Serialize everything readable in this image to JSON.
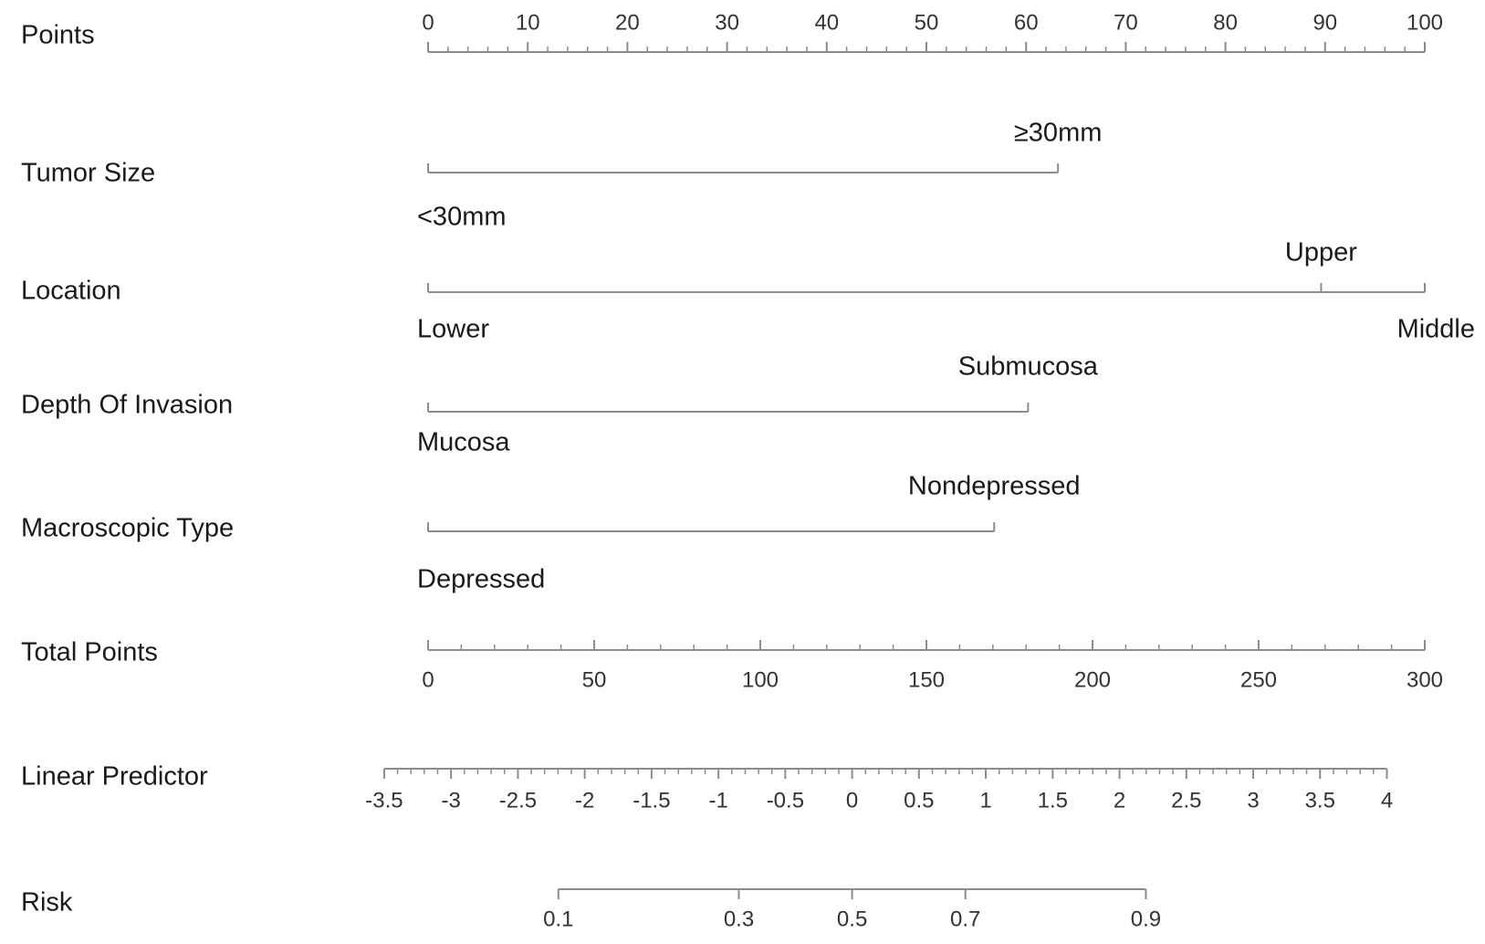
{
  "chart_data": {
    "type": "nomogram",
    "title": "",
    "points_scale": {
      "label": "Points",
      "range": [
        0,
        100
      ],
      "ticks": [
        0,
        10,
        20,
        30,
        40,
        50,
        60,
        70,
        80,
        90,
        100
      ]
    },
    "variables": [
      {
        "label": "Tumor Size",
        "levels": [
          {
            "name": "<30mm",
            "points": 0
          },
          {
            "name": "≥30mm",
            "points": 63.2
          }
        ]
      },
      {
        "label": "Location",
        "levels": [
          {
            "name": "Lower",
            "points": 0
          },
          {
            "name": "Upper",
            "points": 89.6
          },
          {
            "name": "Middle",
            "points": 100
          }
        ]
      },
      {
        "label": "Depth Of Invasion",
        "levels": [
          {
            "name": "Mucosa",
            "points": 0
          },
          {
            "name": "Submucosa",
            "points": 60.2
          }
        ]
      },
      {
        "label": "Macroscopic Type",
        "levels": [
          {
            "name": "Depressed",
            "points": 0
          },
          {
            "name": "Nondepressed",
            "points": 56.8
          }
        ]
      }
    ],
    "total_points": {
      "label": "Total Points",
      "range": [
        0,
        300
      ],
      "ticks": [
        0,
        50,
        100,
        150,
        200,
        250,
        300
      ]
    },
    "linear_predictor": {
      "label": "Linear Predictor",
      "range": [
        -3.5,
        4
      ],
      "ticks": [
        -3.5,
        -3,
        -2.5,
        -2,
        -1.5,
        -1,
        -0.5,
        0,
        0.5,
        1,
        1.5,
        2,
        2.5,
        3,
        3.5,
        4
      ],
      "tick_labels": [
        "-3.5",
        "-3",
        "-2.5",
        "-2",
        "-1.5",
        "-1",
        "-0.5",
        "0",
        "0.5",
        "1",
        "1.5",
        "2",
        "2.5",
        "3",
        "3.5",
        "4"
      ],
      "total_points_at_min": -13.2,
      "total_points_at_max": 288.6
    },
    "risk": {
      "label": "Risk",
      "range": [
        0.1,
        0.9
      ],
      "ticks": [
        0.1,
        0.3,
        0.5,
        0.7,
        0.9
      ],
      "tick_labels": [
        "0.1",
        "0.3",
        "0.5",
        "0.7",
        "0.9"
      ]
    }
  }
}
